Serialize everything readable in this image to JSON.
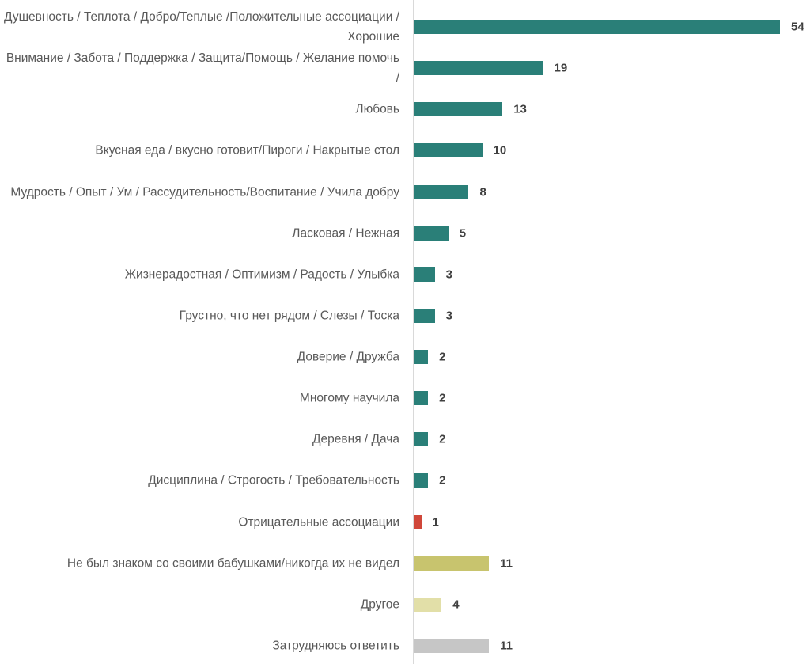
{
  "chart_data": {
    "type": "bar",
    "orientation": "horizontal",
    "categories": [
      "Душевность / Теплота / Добро/Теплые /Положительные ассоциации / Хорошие",
      "Внимание / Забота / Поддержка / Защита/Помощь / Желание помочь /",
      "Любовь",
      "Вкусная еда / вкусно готовит/Пироги / Накрытые стол",
      "Мудрость / Опыт / Ум / Рассудительность/Воспитание / Учила добру",
      "Ласковая / Нежная",
      "Жизнерадостная / Оптимизм / Радость / Улыбка",
      "Грустно, что нет рядом / Слезы / Тоска",
      "Доверие / Дружба",
      "Многому научила",
      "Деревня / Дача",
      "Дисциплина / Строгость / Требовательность",
      "Отрицательные ассоциации",
      "Не был знаком со своими бабушками/никогда их не видел",
      "Другое",
      "Затрудняюсь ответить"
    ],
    "values": [
      54,
      19,
      13,
      10,
      8,
      5,
      3,
      3,
      2,
      2,
      2,
      2,
      1,
      11,
      4,
      11
    ],
    "colors": [
      "#2a7f78",
      "#2a7f78",
      "#2a7f78",
      "#2a7f78",
      "#2a7f78",
      "#2a7f78",
      "#2a7f78",
      "#2a7f78",
      "#2a7f78",
      "#2a7f78",
      "#2a7f78",
      "#2a7f78",
      "#d0473a",
      "#c8c46e",
      "#e2dfa8",
      "#c6c6c6"
    ]
  }
}
